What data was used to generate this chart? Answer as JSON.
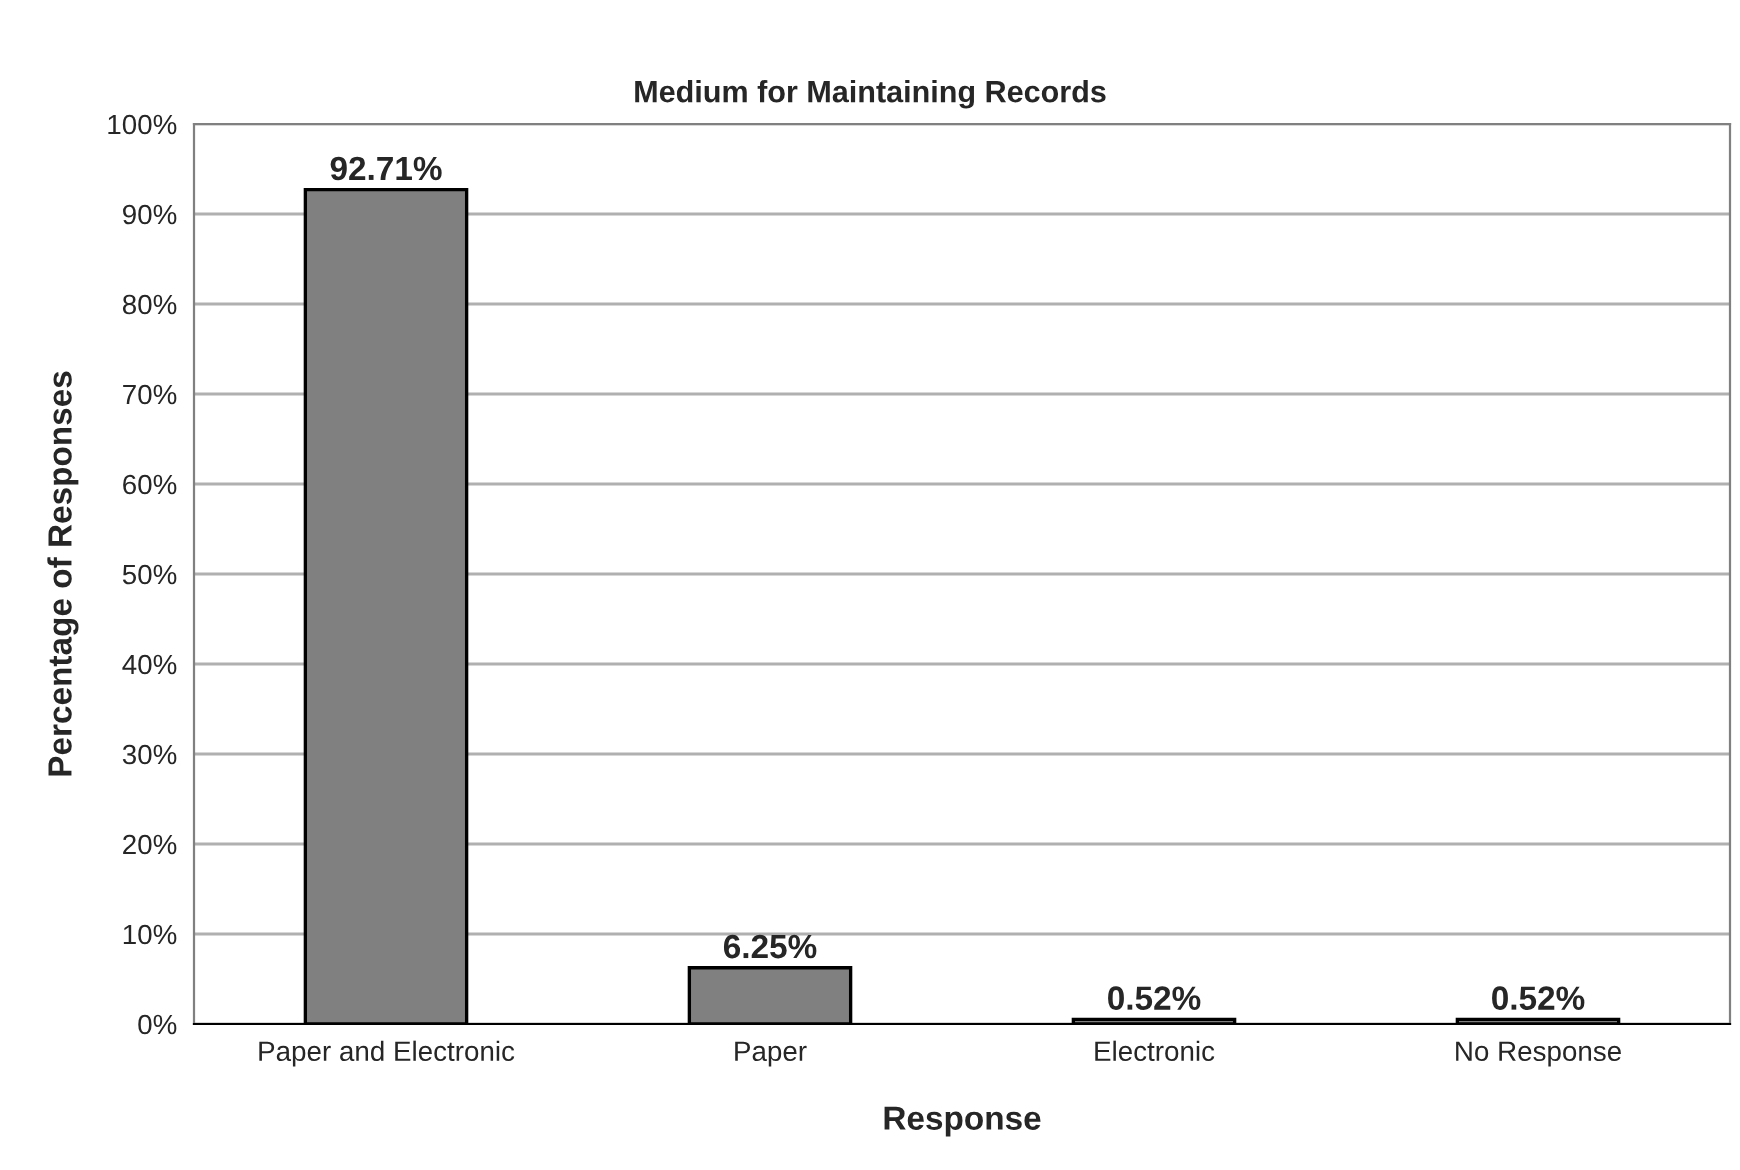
{
  "chart_data": {
    "type": "bar",
    "title": "Medium for Maintaining Records",
    "xlabel": "Response",
    "ylabel": "Percentage of Responses",
    "categories": [
      "Paper and Electronic",
      "Paper",
      "Electronic",
      "No Response"
    ],
    "values": [
      92.71,
      6.25,
      0.52,
      0.52
    ],
    "value_labels": [
      "92.71%",
      "6.25%",
      "0.52%",
      "0.52%"
    ],
    "color": "#808080",
    "ylim": [
      0,
      100
    ],
    "yticks": [
      {
        "value": 0,
        "label": "0%"
      },
      {
        "value": 10,
        "label": "10%"
      },
      {
        "value": 20,
        "label": "20%"
      },
      {
        "value": 30,
        "label": "30%"
      },
      {
        "value": 40,
        "label": "40%"
      },
      {
        "value": 50,
        "label": "50%"
      },
      {
        "value": 60,
        "label": "60%"
      },
      {
        "value": 70,
        "label": "70%"
      },
      {
        "value": 80,
        "label": "80%"
      },
      {
        "value": 90,
        "label": "90%"
      },
      {
        "value": 100,
        "label": "100%"
      }
    ],
    "grid": "y",
    "legend": false
  }
}
